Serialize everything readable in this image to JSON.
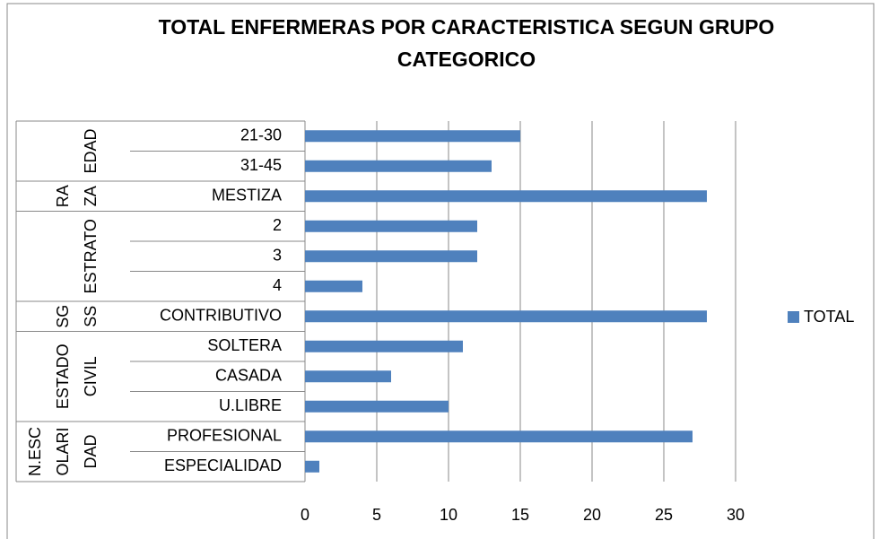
{
  "chart_data": {
    "type": "bar",
    "orientation": "horizontal",
    "title": "TOTAL ENFERMERAS POR CARACTERISTICA SEGUN GRUPO CATEGORICO",
    "groups": [
      {
        "label": [
          "EDAD"
        ],
        "categories": [
          "21-30",
          "31-45"
        ]
      },
      {
        "label": [
          "RA",
          "ZA"
        ],
        "categories": [
          "MESTIZA"
        ]
      },
      {
        "label": [
          "ESTRATO"
        ],
        "categories": [
          "2",
          "3",
          "4"
        ]
      },
      {
        "label": [
          "SG",
          "SS"
        ],
        "categories": [
          "CONTRIBUTIVO"
        ]
      },
      {
        "label": [
          "ESTADO",
          "CIVIL"
        ],
        "categories": [
          "SOLTERA",
          "CASADA",
          "U.LIBRE"
        ]
      },
      {
        "label": [
          "N.ESC",
          "OLARI",
          "DAD"
        ],
        "categories": [
          "PROFESIONAL",
          "ESPECIALIDAD"
        ]
      }
    ],
    "series": [
      {
        "name": "TOTAL",
        "color": "#4f81bd",
        "values": [
          15,
          13,
          28,
          12,
          12,
          4,
          28,
          11,
          6,
          10,
          27,
          1
        ]
      }
    ],
    "xlim": [
      0,
      30
    ],
    "xticks": [
      0,
      5,
      10,
      15,
      20,
      25,
      30
    ],
    "grid": true,
    "legend": "right"
  }
}
